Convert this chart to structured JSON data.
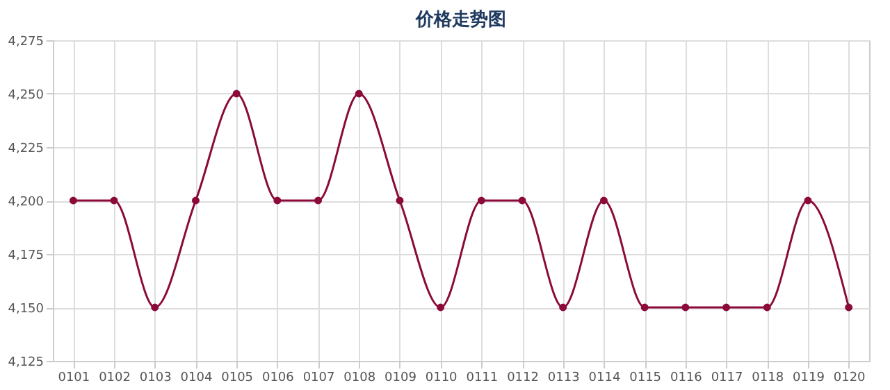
{
  "chart_data": {
    "type": "line",
    "title": "价格走势图",
    "categories": [
      "0101",
      "0102",
      "0103",
      "0104",
      "0105",
      "0106",
      "0107",
      "0108",
      "0109",
      "0110",
      "0111",
      "0112",
      "0113",
      "0114",
      "0115",
      "0116",
      "0117",
      "0118",
      "0119",
      "0120"
    ],
    "series": [
      {
        "color": "#8b0a3a",
        "values": [
          4200,
          4200,
          4150,
          4200,
          4250,
          4200,
          4200,
          4250,
          4200,
          4150,
          4200,
          4200,
          4150,
          4200,
          4150,
          4150,
          4150,
          4150,
          4200,
          4150
        ]
      }
    ],
    "ylim": [
      4125,
      4275
    ],
    "yticks": [
      {
        "value": 4125,
        "label": "4,125"
      },
      {
        "value": 4150,
        "label": "4,150"
      },
      {
        "value": 4175,
        "label": "4,175"
      },
      {
        "value": 4200,
        "label": "4,200"
      },
      {
        "value": 4225,
        "label": "4,225"
      },
      {
        "value": 4250,
        "label": "4,250"
      },
      {
        "value": 4275,
        "label": "4,275"
      }
    ],
    "grid": true,
    "marker": "circle",
    "line_style": "solid",
    "legend": false
  }
}
